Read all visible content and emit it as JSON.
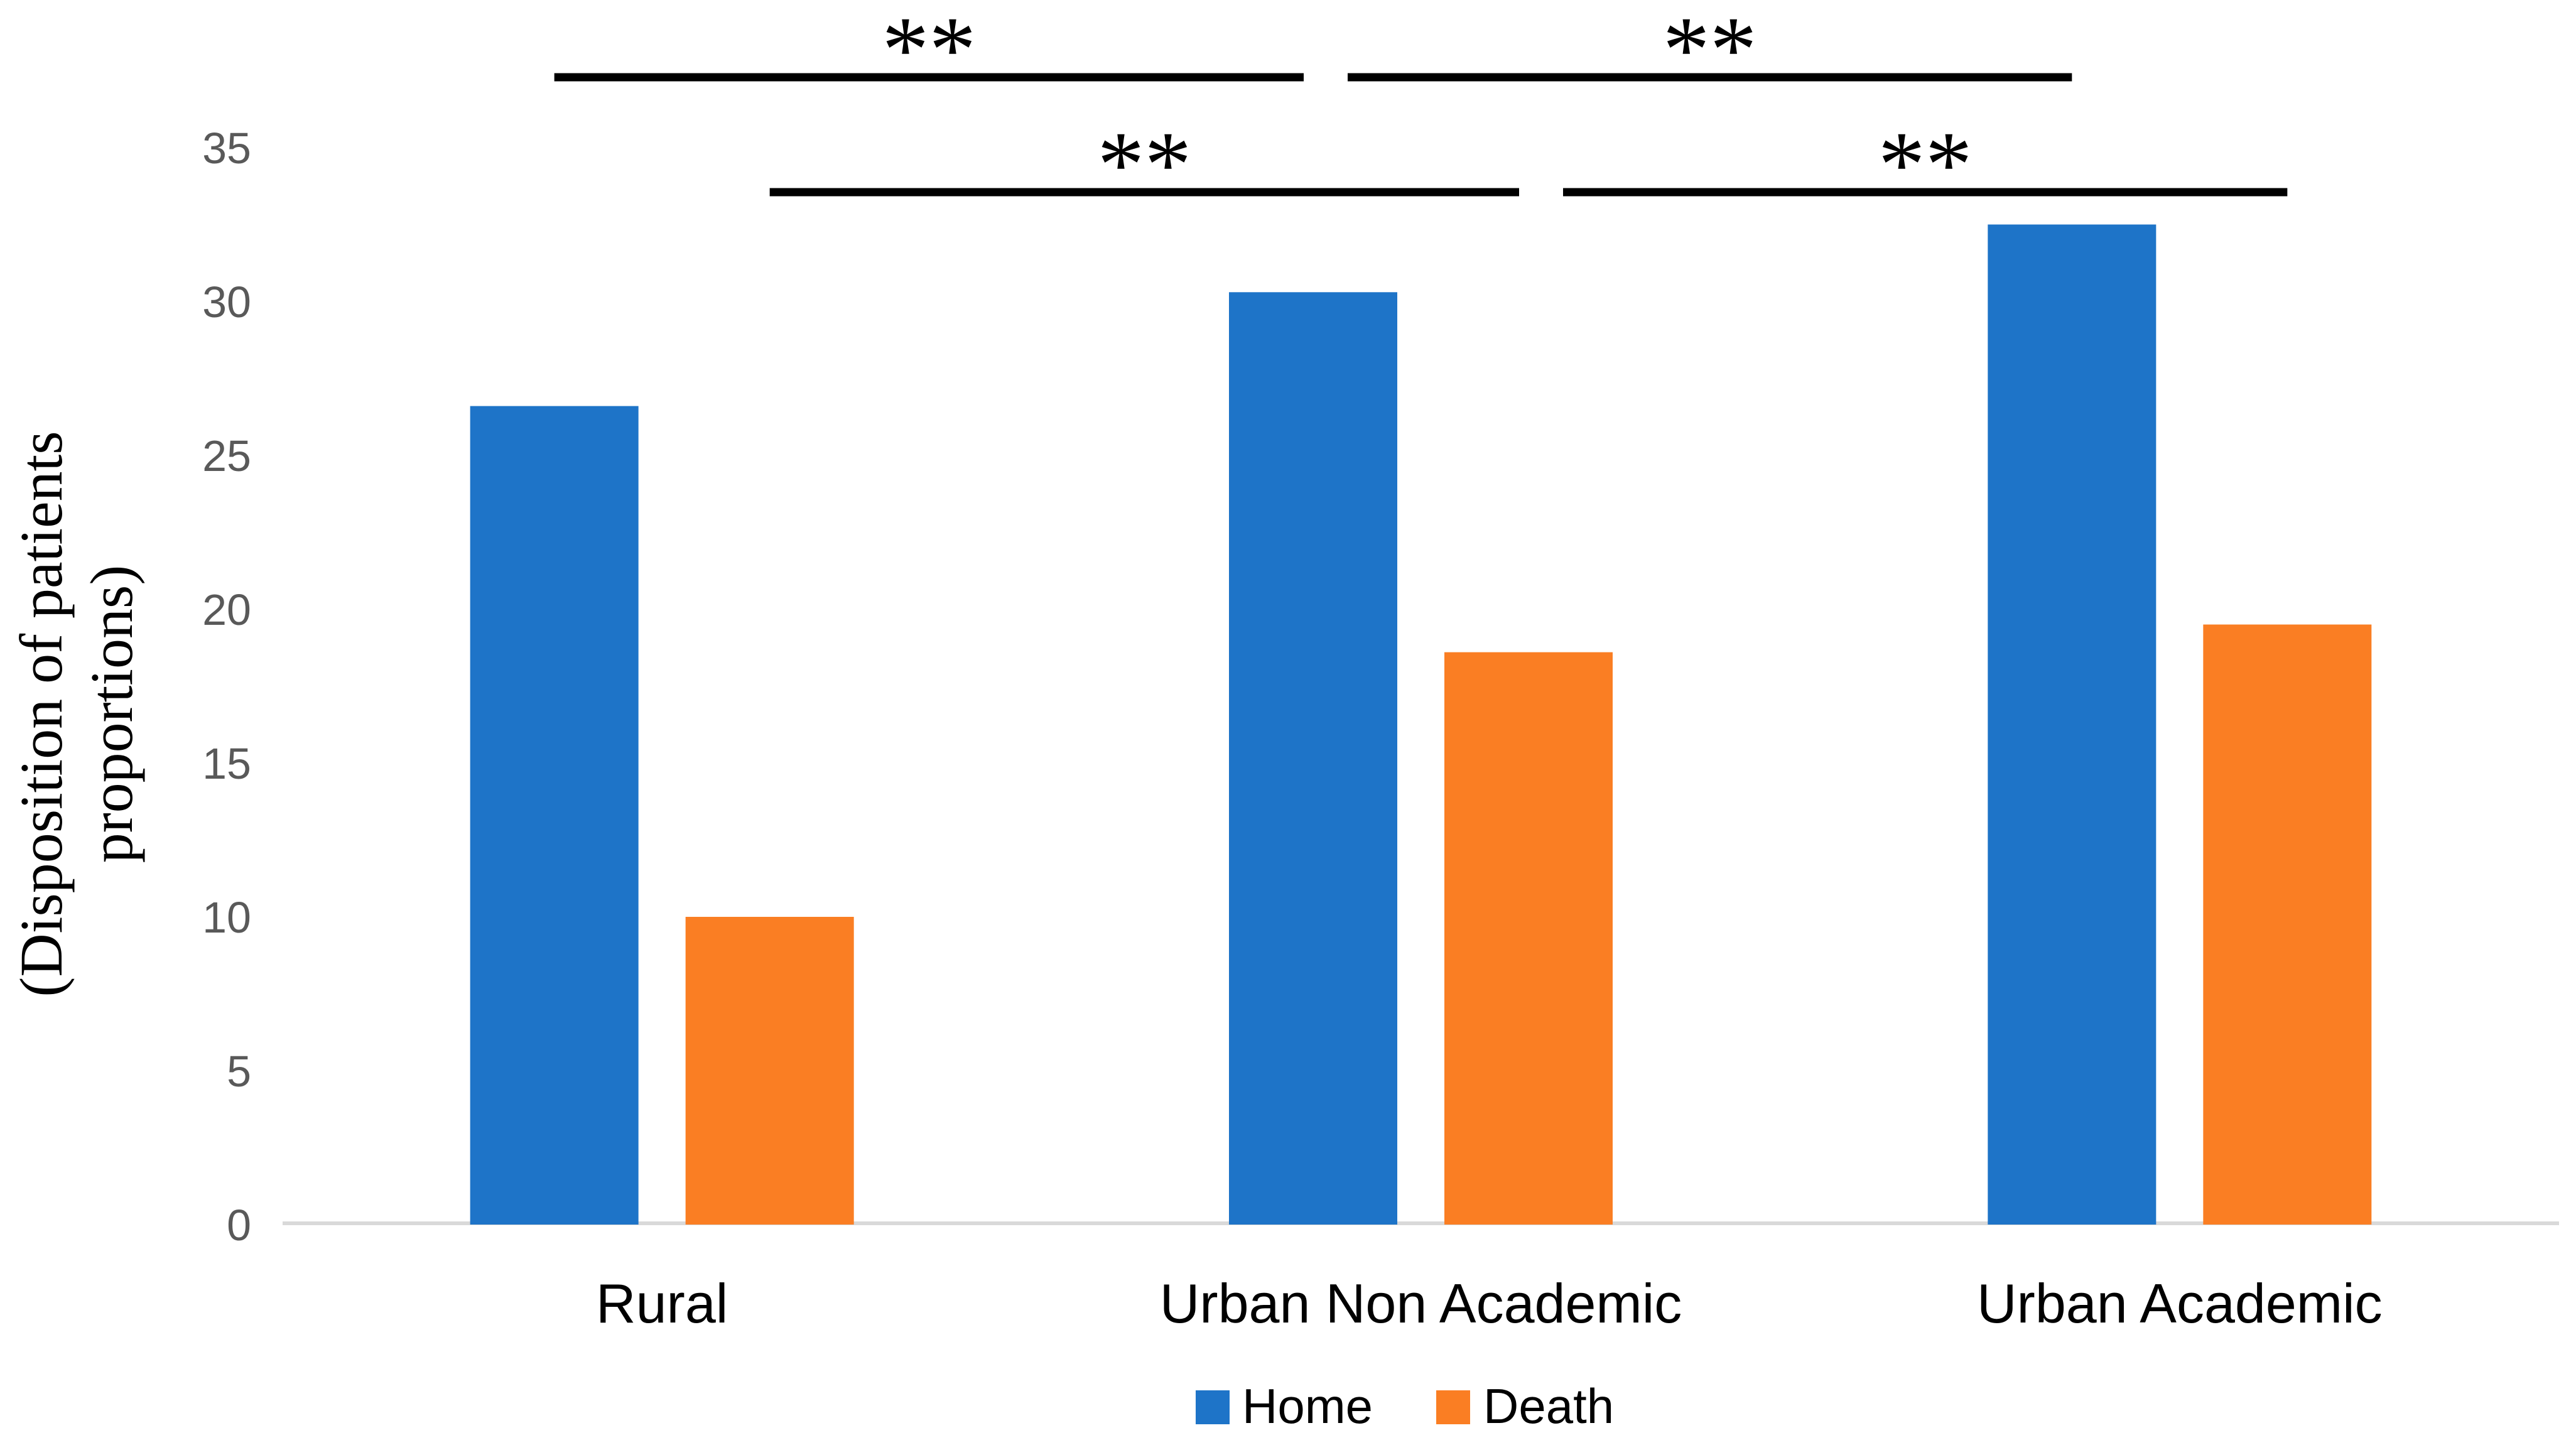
{
  "chart_data": {
    "type": "bar",
    "title": "",
    "categories": [
      "Rural",
      "Urban Non Academic",
      "Urban Academic"
    ],
    "series": [
      {
        "name": "Home",
        "color": "#1E74C8",
        "values": [
          26.6,
          30.3,
          32.5
        ]
      },
      {
        "name": "Death",
        "color": "#FA7E23",
        "values": [
          10.0,
          18.6,
          19.5
        ]
      }
    ],
    "ylabel": "(Disposition of patients proportions)",
    "ylabel_lines": [
      "(Disposition of patients",
      "proportions)"
    ],
    "xlabel": "",
    "ylim": [
      0,
      35
    ],
    "yticks": [
      0,
      5,
      10,
      15,
      20,
      25,
      30,
      35
    ],
    "grid": false,
    "legend_position": "bottom",
    "colors": {
      "background": "#ffffff",
      "axis_line": "#D9D9D9",
      "tick_label": "#595959",
      "label_text": "#000000",
      "significance": "#000000"
    },
    "significance_brackets": [
      {
        "row": 1,
        "series": "Home",
        "between": [
          "Rural",
          "Urban Non Academic"
        ],
        "label": "**"
      },
      {
        "row": 1,
        "series": "Home",
        "between": [
          "Urban Non Academic",
          "Urban Academic"
        ],
        "label": "**"
      },
      {
        "row": 2,
        "series": "Death",
        "between": [
          "Rural",
          "Urban Non Academic"
        ],
        "label": "**"
      },
      {
        "row": 2,
        "series": "Death",
        "between": [
          "Urban Non Academic",
          "Urban Academic"
        ],
        "label": "**"
      }
    ]
  }
}
